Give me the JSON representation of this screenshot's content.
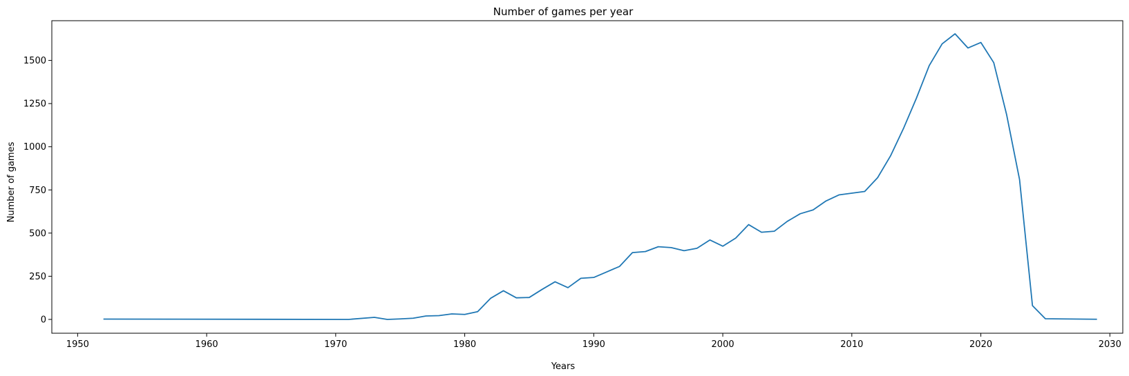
{
  "chart_data": {
    "type": "line",
    "title": "Number of games per year",
    "xlabel": "Years",
    "ylabel": "Number of games",
    "xlim": [
      1948,
      2031
    ],
    "ylim": [
      -80,
      1730
    ],
    "xticks": [
      1950,
      1960,
      1970,
      1980,
      1990,
      2000,
      2010,
      2020,
      2030
    ],
    "yticks": [
      0,
      250,
      500,
      750,
      1000,
      1250,
      1500
    ],
    "grid": false,
    "line_color": "#1f77b4",
    "series": [
      {
        "x": [
          1952,
          1971,
          1973,
          1974,
          1975,
          1976,
          1977,
          1978,
          1979,
          1980,
          1981,
          1982,
          1983,
          1984,
          1985,
          1986,
          1987,
          1988,
          1989,
          1990,
          1991,
          1992,
          1993,
          1994,
          1995,
          1996,
          1997,
          1998,
          1999,
          2000,
          2001,
          2002,
          2003,
          2004,
          2005,
          2006,
          2007,
          2008,
          2009,
          2010,
          2011,
          2012,
          2013,
          2014,
          2015,
          2016,
          2017,
          2018,
          2019,
          2020,
          2021,
          2022,
          2023,
          2024,
          2025,
          2029
        ],
        "y": [
          2,
          0,
          12,
          0,
          3,
          7,
          20,
          22,
          32,
          29,
          45,
          122,
          166,
          125,
          127,
          174,
          218,
          184,
          238,
          243,
          275,
          307,
          387,
          393,
          421,
          416,
          398,
          412,
          460,
          424,
          471,
          549,
          505,
          511,
          568,
          612,
          634,
          686,
          721,
          731,
          741,
          821,
          947,
          1105,
          1280,
          1470,
          1596,
          1654,
          1572,
          1604,
          1487,
          1185,
          810,
          80,
          4,
          1
        ]
      }
    ]
  }
}
